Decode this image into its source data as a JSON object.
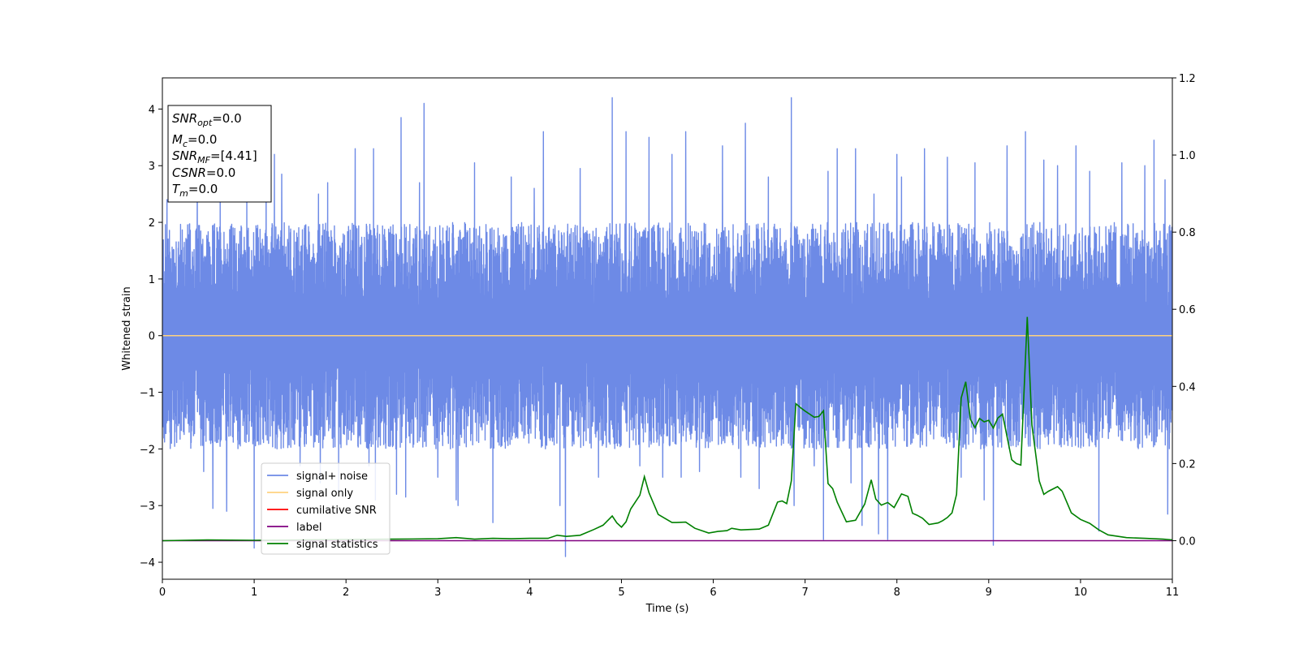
{
  "chart_data": {
    "type": "line",
    "xlabel": "Time (s)",
    "ylabel": "Whitened strain",
    "xlim": [
      0,
      11
    ],
    "ylim_left": [
      -4.3,
      4.55
    ],
    "ylim_right": [
      -0.1,
      1.2
    ],
    "x_ticks": [
      "0",
      "1",
      "2",
      "3",
      "4",
      "5",
      "6",
      "7",
      "8",
      "9",
      "10",
      "11"
    ],
    "y_ticks_left": [
      "−4",
      "−3",
      "−2",
      "−1",
      "0",
      "1",
      "2",
      "3",
      "4"
    ],
    "y_ticks_right": [
      "0.0",
      "0.2",
      "0.4",
      "0.6",
      "0.8",
      "1.0",
      "1.2"
    ],
    "legend": {
      "placement": "lower-left",
      "entries": [
        {
          "label": "signal+ noise",
          "color": "#6d8ae6"
        },
        {
          "label": "signal only",
          "color": "#ffd27f"
        },
        {
          "label": "cumilative SNR",
          "color": "#ff0000"
        },
        {
          "label": "label",
          "color": "#800080"
        },
        {
          "label": "signal statistics",
          "color": "#008000"
        }
      ]
    },
    "info_box": {
      "lines": [
        {
          "sym": "SNR",
          "sub": "opt",
          "value": "=0.0"
        },
        {
          "sym": "M",
          "sub": "c",
          "value": "=0.0"
        },
        {
          "sym": "SNR",
          "sub": "MF",
          "value": "=[4.41]"
        },
        {
          "sym": "CSNR",
          "sub": "",
          "value": "=0.0"
        },
        {
          "sym": "T",
          "sub": "m",
          "value": "=0.0"
        }
      ]
    },
    "series": [
      {
        "name": "signal+ noise",
        "axis": "left",
        "color": "#6d8ae6",
        "description": "dense noise envelope",
        "envelope_upper": 2.0,
        "envelope_lower": -2.0,
        "spikes": [
          [
            0.05,
            2.4
          ],
          [
            0.1,
            -1.9
          ],
          [
            0.38,
            2.8
          ],
          [
            0.45,
            -2.4
          ],
          [
            0.55,
            -3.05
          ],
          [
            0.63,
            2.6
          ],
          [
            0.7,
            -3.1
          ],
          [
            0.92,
            2.55
          ],
          [
            1.0,
            -3.75
          ],
          [
            1.13,
            3.45
          ],
          [
            1.22,
            3.2
          ],
          [
            1.3,
            2.85
          ],
          [
            1.5,
            -2.3
          ],
          [
            1.7,
            2.5
          ],
          [
            1.72,
            -2.6
          ],
          [
            1.8,
            2.7
          ],
          [
            1.92,
            -2.75
          ],
          [
            2.1,
            3.3
          ],
          [
            2.25,
            -2.3
          ],
          [
            2.3,
            3.3
          ],
          [
            2.32,
            -2.9
          ],
          [
            2.55,
            -2.8
          ],
          [
            2.6,
            3.85
          ],
          [
            2.65,
            -2.85
          ],
          [
            2.8,
            2.7
          ],
          [
            2.85,
            4.1
          ],
          [
            3.0,
            -2.5
          ],
          [
            3.2,
            -2.9
          ],
          [
            3.22,
            -3.0
          ],
          [
            3.4,
            3.05
          ],
          [
            3.6,
            -3.3
          ],
          [
            3.8,
            2.8
          ],
          [
            4.05,
            2.6
          ],
          [
            4.15,
            3.6
          ],
          [
            4.33,
            -3.0
          ],
          [
            4.39,
            -3.9
          ],
          [
            4.55,
            2.95
          ],
          [
            4.75,
            -2.5
          ],
          [
            4.9,
            4.2
          ],
          [
            5.05,
            3.6
          ],
          [
            5.2,
            -2.3
          ],
          [
            5.3,
            3.5
          ],
          [
            5.45,
            -2.5
          ],
          [
            5.55,
            3.2
          ],
          [
            5.65,
            -2.5
          ],
          [
            5.7,
            3.6
          ],
          [
            5.85,
            -2.4
          ],
          [
            6.1,
            3.35
          ],
          [
            6.3,
            -2.5
          ],
          [
            6.35,
            3.75
          ],
          [
            6.5,
            -2.7
          ],
          [
            6.6,
            2.8
          ],
          [
            6.85,
            4.2
          ],
          [
            6.88,
            -3.0
          ],
          [
            7.1,
            -2.3
          ],
          [
            7.2,
            -3.6
          ],
          [
            7.25,
            2.9
          ],
          [
            7.35,
            3.3
          ],
          [
            7.5,
            -2.6
          ],
          [
            7.55,
            3.3
          ],
          [
            7.62,
            -3.35
          ],
          [
            7.75,
            2.5
          ],
          [
            7.8,
            -3.5
          ],
          [
            7.9,
            -3.6
          ],
          [
            8.0,
            3.2
          ],
          [
            8.05,
            2.8
          ],
          [
            8.3,
            3.3
          ],
          [
            8.55,
            3.15
          ],
          [
            8.7,
            -2.5
          ],
          [
            8.85,
            3.05
          ],
          [
            8.95,
            -2.9
          ],
          [
            9.05,
            -3.7
          ],
          [
            9.2,
            3.35
          ],
          [
            9.4,
            3.6
          ],
          [
            9.6,
            3.1
          ],
          [
            9.75,
            3.0
          ],
          [
            9.95,
            3.35
          ],
          [
            10.1,
            2.9
          ],
          [
            10.2,
            -3.45
          ],
          [
            10.45,
            3.05
          ],
          [
            10.7,
            3.0
          ],
          [
            10.8,
            3.45
          ],
          [
            10.92,
            2.75
          ],
          [
            10.95,
            -3.15
          ]
        ]
      },
      {
        "name": "signal only",
        "axis": "left",
        "color": "#ffd27f",
        "x": [
          0,
          11
        ],
        "y": [
          0,
          0
        ]
      },
      {
        "name": "label",
        "axis": "right",
        "color": "#800080",
        "x": [
          0,
          11
        ],
        "y": [
          0,
          0
        ]
      },
      {
        "name": "signal statistics",
        "axis": "right",
        "color": "#008000",
        "x": [
          0,
          0.5,
          1.0,
          1.5,
          2.0,
          2.5,
          3.0,
          3.2,
          3.4,
          3.6,
          3.8,
          4.0,
          4.2,
          4.3,
          4.4,
          4.55,
          4.7,
          4.8,
          4.9,
          4.95,
          5.0,
          5.05,
          5.1,
          5.2,
          5.25,
          5.3,
          5.4,
          5.55,
          5.6,
          5.7,
          5.8,
          5.95,
          6.05,
          6.15,
          6.2,
          6.3,
          6.4,
          6.5,
          6.6,
          6.7,
          6.75,
          6.8,
          6.85,
          6.9,
          6.95,
          7.0,
          7.05,
          7.1,
          7.15,
          7.2,
          7.25,
          7.3,
          7.35,
          7.45,
          7.55,
          7.65,
          7.72,
          7.77,
          7.83,
          7.9,
          7.97,
          8.05,
          8.12,
          8.17,
          8.22,
          8.28,
          8.35,
          8.45,
          8.5,
          8.55,
          8.6,
          8.65,
          8.7,
          8.75,
          8.8,
          8.85,
          8.9,
          8.95,
          9.0,
          9.05,
          9.1,
          9.15,
          9.25,
          9.3,
          9.35,
          9.42,
          9.47,
          9.55,
          9.6,
          9.65,
          9.75,
          9.8,
          9.9,
          10.0,
          10.1,
          10.2,
          10.3,
          10.5,
          10.7,
          10.9,
          11.0
        ],
        "y": [
          0.0,
          0.002,
          0.001,
          0.002,
          0.003,
          0.004,
          0.005,
          0.008,
          0.004,
          0.006,
          0.005,
          0.006,
          0.006,
          0.014,
          0.011,
          0.014,
          0.029,
          0.04,
          0.064,
          0.046,
          0.035,
          0.049,
          0.082,
          0.118,
          0.166,
          0.124,
          0.068,
          0.047,
          0.047,
          0.048,
          0.032,
          0.02,
          0.024,
          0.026,
          0.032,
          0.028,
          0.029,
          0.03,
          0.04,
          0.1,
          0.103,
          0.096,
          0.155,
          0.355,
          0.345,
          0.336,
          0.328,
          0.32,
          0.322,
          0.337,
          0.148,
          0.135,
          0.1,
          0.049,
          0.053,
          0.095,
          0.158,
          0.108,
          0.092,
          0.099,
          0.086,
          0.121,
          0.115,
          0.071,
          0.066,
          0.058,
          0.042,
          0.046,
          0.052,
          0.06,
          0.072,
          0.12,
          0.37,
          0.412,
          0.315,
          0.293,
          0.317,
          0.308,
          0.312,
          0.292,
          0.318,
          0.328,
          0.21,
          0.2,
          0.196,
          0.58,
          0.3,
          0.155,
          0.12,
          0.128,
          0.14,
          0.128,
          0.072,
          0.055,
          0.045,
          0.028,
          0.015,
          0.008,
          0.006,
          0.004,
          0.002
        ]
      }
    ]
  }
}
